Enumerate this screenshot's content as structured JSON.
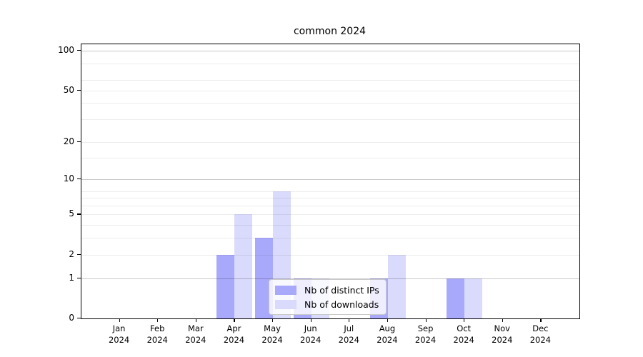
{
  "chart_data": {
    "type": "bar",
    "title": "common 2024",
    "categories": [
      "Jan",
      "Feb",
      "Mar",
      "Apr",
      "May",
      "Jun",
      "Jul",
      "Aug",
      "Sep",
      "Oct",
      "Nov",
      "Dec"
    ],
    "category_year": "2024",
    "series": [
      {
        "name": "Nb of distinct IPs",
        "color": "#a9a9fb",
        "values": [
          0,
          0,
          0,
          2,
          3,
          1,
          0,
          1,
          0,
          1,
          0,
          0
        ]
      },
      {
        "name": "Nb of downloads",
        "color": "#dadafc",
        "values": [
          0,
          0,
          0,
          5,
          8,
          1,
          0,
          2,
          0,
          1,
          0,
          0
        ]
      }
    ],
    "xlabel": "",
    "ylabel": "",
    "y_axis": {
      "scale": "log1p",
      "tick_labels": [
        0,
        1,
        2,
        5,
        10,
        20,
        50,
        100
      ],
      "ylim": [
        0,
        112
      ],
      "major_gridlines": [
        1,
        10,
        100
      ],
      "minor_gridlines": [
        2,
        3,
        4,
        5,
        6,
        7,
        8,
        15,
        20,
        30,
        40,
        50,
        60,
        80
      ]
    },
    "grid": true,
    "legend_position": "lower center"
  },
  "colors": {
    "background": "#ffffff",
    "axis_frame": "#000000",
    "major_grid": "rgba(0,0,0,0.22)",
    "minor_grid": "rgba(0,0,0,0.07)"
  }
}
